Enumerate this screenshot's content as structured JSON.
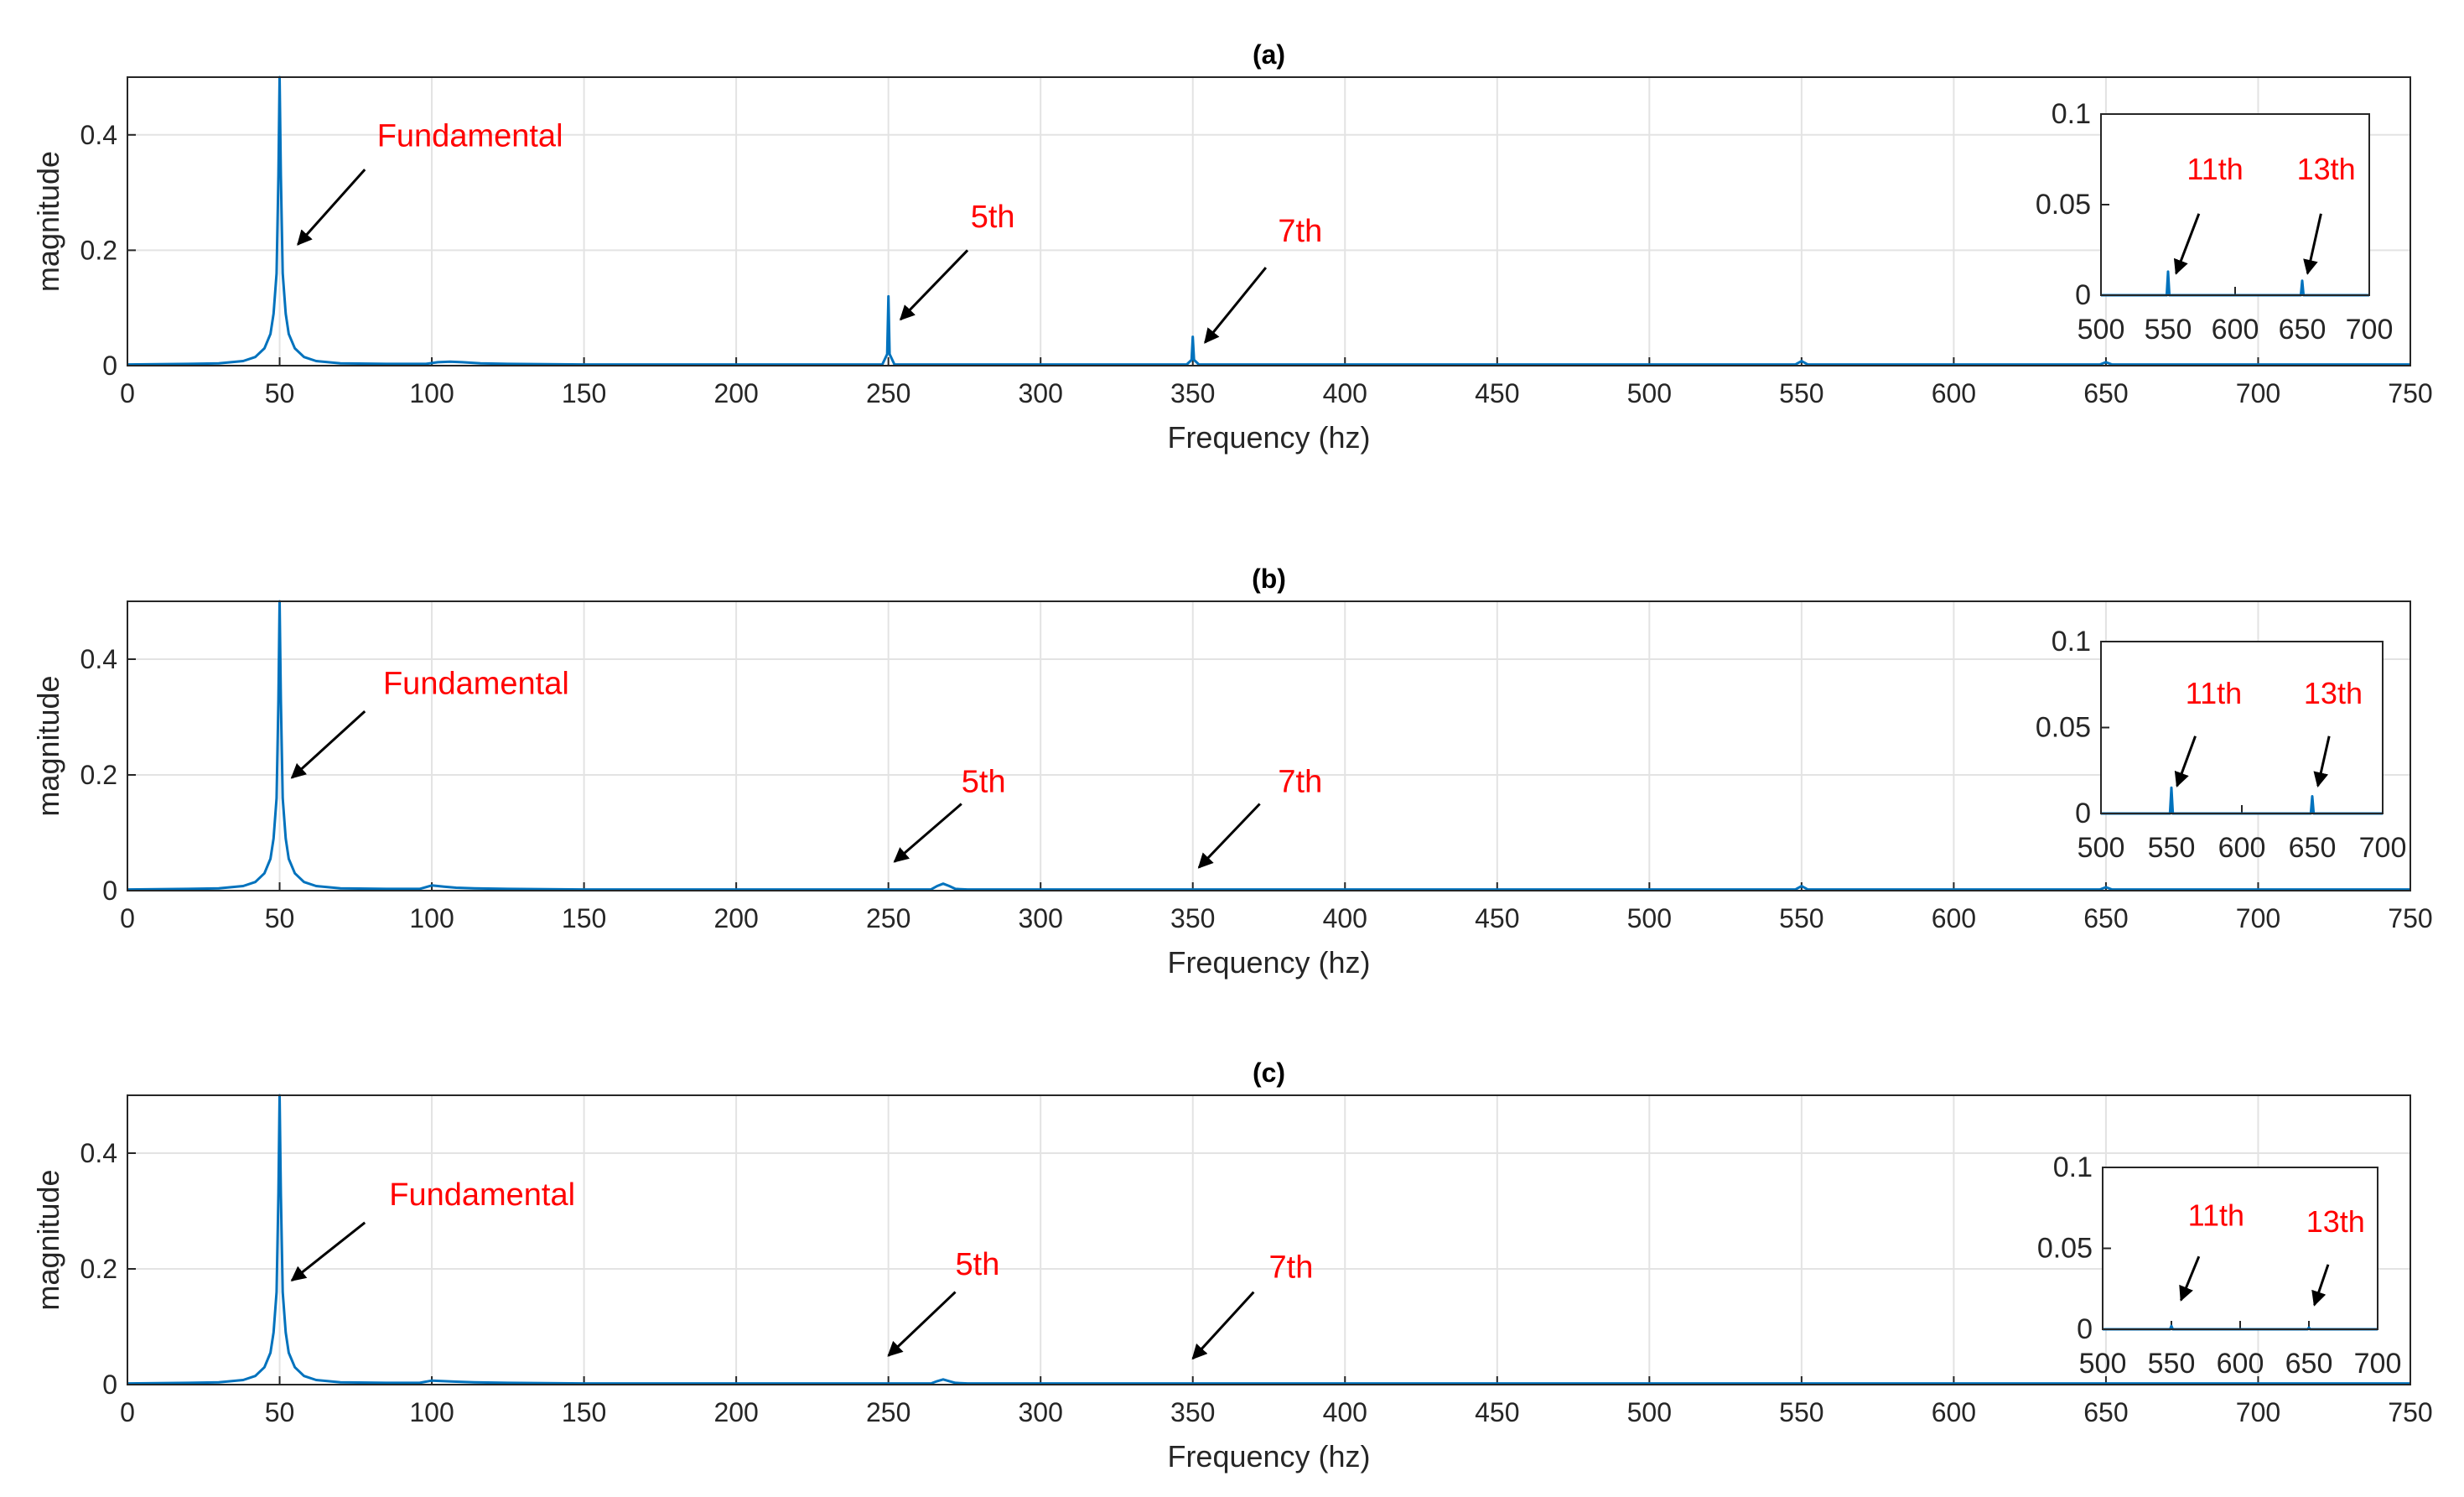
{
  "colors": {
    "series": "#0072BD",
    "grid": "#e3e3e3",
    "axis": "#262626",
    "annotation": "#ff0000",
    "arrow": "#000000"
  },
  "chart_data": [
    {
      "type": "line",
      "title": "(a)",
      "xlabel": "Frequency (hz)",
      "ylabel": "magnitude",
      "xlim": [
        0,
        750
      ],
      "ylim": [
        0,
        0.5
      ],
      "xticks": [
        0,
        50,
        100,
        150,
        200,
        250,
        300,
        350,
        400,
        450,
        500,
        550,
        600,
        650,
        700,
        750
      ],
      "yticks": [
        0,
        0.2,
        0.4
      ],
      "ytick_labels": [
        "0",
        "0.2",
        "0.4"
      ],
      "grid": true,
      "series": [
        {
          "x": [
            0,
            20,
            30,
            38,
            42,
            45,
            47,
            48,
            49,
            49.6,
            50,
            50.4,
            51,
            52,
            53,
            55,
            58,
            62,
            70,
            85,
            98,
            102,
            106,
            110,
            116,
            125,
            150,
            200,
            248,
            249.6,
            250,
            250.4,
            252,
            300,
            348,
            349.6,
            350,
            350.4,
            352,
            400,
            500,
            548,
            550,
            552,
            600,
            648,
            650,
            652,
            700,
            750
          ],
          "y": [
            0.002,
            0.003,
            0.004,
            0.008,
            0.015,
            0.03,
            0.055,
            0.09,
            0.16,
            0.33,
            0.5,
            0.33,
            0.16,
            0.09,
            0.055,
            0.03,
            0.015,
            0.008,
            0.004,
            0.003,
            0.003,
            0.006,
            0.007,
            0.006,
            0.004,
            0.003,
            0.002,
            0.002,
            0.002,
            0.02,
            0.12,
            0.02,
            0.002,
            0.002,
            0.002,
            0.01,
            0.05,
            0.01,
            0.002,
            0.002,
            0.002,
            0.002,
            0.008,
            0.002,
            0.002,
            0.002,
            0.006,
            0.002,
            0.002,
            0.002
          ]
        }
      ],
      "annotations": [
        {
          "text": "Fundamental",
          "x": 82,
          "y": 0.38,
          "arrow_tail": [
            78,
            0.34
          ],
          "arrow_head": [
            56,
            0.21
          ]
        },
        {
          "text": "5th",
          "x": 277,
          "y": 0.24,
          "arrow_tail": [
            276,
            0.2
          ],
          "arrow_head": [
            254,
            0.08
          ]
        },
        {
          "text": "7th",
          "x": 378,
          "y": 0.215,
          "arrow_tail": [
            374,
            0.17
          ],
          "arrow_head": [
            354,
            0.04
          ]
        }
      ],
      "inset": {
        "xlim": [
          500,
          700
        ],
        "ylim": [
          0,
          0.1
        ],
        "xticks": [
          500,
          550,
          600,
          650,
          700
        ],
        "yticks": [
          0,
          0.05,
          0.1
        ],
        "ytick_labels": [
          "0",
          "0.05",
          "0.1"
        ],
        "series": [
          {
            "x": [
              500,
              549,
              550,
              551,
              649,
              650,
              651,
              700
            ],
            "y": [
              0,
              0,
              0.013,
              0,
              0,
              0.008,
              0,
              0
            ]
          }
        ],
        "annotations": [
          {
            "text": "11th",
            "x": 564,
            "y": 0.064,
            "arrow_tail": [
              573,
              0.045
            ],
            "arrow_head": [
              556,
              0.012
            ]
          },
          {
            "text": "13th",
            "x": 646,
            "y": 0.064,
            "arrow_tail": [
              664,
              0.045
            ],
            "arrow_head": [
              654,
              0.012
            ]
          }
        ]
      }
    },
    {
      "type": "line",
      "title": "(b)",
      "xlabel": "Frequency (hz)",
      "ylabel": "magnitude",
      "xlim": [
        0,
        750
      ],
      "ylim": [
        0,
        0.5
      ],
      "xticks": [
        0,
        50,
        100,
        150,
        200,
        250,
        300,
        350,
        400,
        450,
        500,
        550,
        600,
        650,
        700,
        750
      ],
      "yticks": [
        0,
        0.2,
        0.4
      ],
      "ytick_labels": [
        "0",
        "0.2",
        "0.4"
      ],
      "grid": true,
      "series": [
        {
          "x": [
            0,
            20,
            30,
            38,
            42,
            45,
            47,
            48,
            49,
            49.6,
            50,
            50.4,
            51,
            52,
            53,
            55,
            58,
            62,
            70,
            85,
            96,
            100,
            104,
            108,
            114,
            125,
            150,
            200,
            250,
            264,
            266,
            268,
            270,
            272,
            276,
            300,
            350,
            400,
            500,
            548,
            550,
            552,
            600,
            648,
            650,
            652,
            700,
            750
          ],
          "y": [
            0.002,
            0.003,
            0.004,
            0.008,
            0.015,
            0.03,
            0.055,
            0.09,
            0.16,
            0.33,
            0.5,
            0.33,
            0.16,
            0.09,
            0.055,
            0.03,
            0.015,
            0.008,
            0.004,
            0.003,
            0.003,
            0.009,
            0.007,
            0.005,
            0.004,
            0.003,
            0.002,
            0.002,
            0.002,
            0.002,
            0.008,
            0.012,
            0.008,
            0.003,
            0.002,
            0.002,
            0.002,
            0.002,
            0.002,
            0.002,
            0.008,
            0.002,
            0.002,
            0.002,
            0.006,
            0.002,
            0.002,
            0.002
          ]
        }
      ],
      "annotations": [
        {
          "text": "Fundamental",
          "x": 84,
          "y": 0.34,
          "arrow_tail": [
            78,
            0.31
          ],
          "arrow_head": [
            54,
            0.195
          ]
        },
        {
          "text": "5th",
          "x": 274,
          "y": 0.17,
          "arrow_tail": [
            274,
            0.15
          ],
          "arrow_head": [
            252,
            0.05
          ]
        },
        {
          "text": "7th",
          "x": 378,
          "y": 0.17,
          "arrow_tail": [
            372,
            0.15
          ],
          "arrow_head": [
            352,
            0.04
          ]
        }
      ],
      "inset": {
        "xlim": [
          500,
          700
        ],
        "ylim": [
          0,
          0.1
        ],
        "xticks": [
          500,
          550,
          600,
          650,
          700
        ],
        "yticks": [
          0,
          0.05,
          0.1
        ],
        "ytick_labels": [
          "0",
          "0.05",
          "0.1"
        ],
        "series": [
          {
            "x": [
              500,
              549,
              550,
              551,
              649,
              650,
              651,
              700
            ],
            "y": [
              0,
              0,
              0.015,
              0,
              0,
              0.01,
              0,
              0
            ]
          }
        ],
        "annotations": [
          {
            "text": "11th",
            "x": 560,
            "y": 0.064,
            "arrow_tail": [
              567,
              0.045
            ],
            "arrow_head": [
              554,
              0.016
            ]
          },
          {
            "text": "13th",
            "x": 644,
            "y": 0.064,
            "arrow_tail": [
              662,
              0.045
            ],
            "arrow_head": [
              654,
              0.016
            ]
          }
        ]
      }
    },
    {
      "type": "line",
      "title": "(c)",
      "xlabel": "Frequency (hz)",
      "ylabel": "magnitude",
      "xlim": [
        0,
        750
      ],
      "ylim": [
        0,
        0.5
      ],
      "xticks": [
        0,
        50,
        100,
        150,
        200,
        250,
        300,
        350,
        400,
        450,
        500,
        550,
        600,
        650,
        700,
        750
      ],
      "yticks": [
        0,
        0.2,
        0.4
      ],
      "ytick_labels": [
        "0",
        "0.2",
        "0.4"
      ],
      "grid": true,
      "series": [
        {
          "x": [
            0,
            20,
            30,
            38,
            42,
            45,
            47,
            48,
            49,
            49.6,
            50,
            50.4,
            51,
            52,
            53,
            55,
            58,
            62,
            70,
            85,
            96,
            100,
            104,
            108,
            114,
            125,
            150,
            200,
            250,
            264,
            266,
            268,
            270,
            272,
            276,
            300,
            350,
            400,
            500,
            550,
            600,
            650,
            700,
            750
          ],
          "y": [
            0.002,
            0.003,
            0.004,
            0.008,
            0.015,
            0.03,
            0.055,
            0.09,
            0.16,
            0.33,
            0.5,
            0.33,
            0.16,
            0.09,
            0.055,
            0.03,
            0.015,
            0.008,
            0.004,
            0.003,
            0.003,
            0.007,
            0.006,
            0.005,
            0.004,
            0.003,
            0.002,
            0.002,
            0.002,
            0.002,
            0.006,
            0.009,
            0.006,
            0.003,
            0.002,
            0.002,
            0.002,
            0.002,
            0.002,
            0.002,
            0.002,
            0.002,
            0.002,
            0.002
          ]
        }
      ],
      "annotations": [
        {
          "text": "Fundamental",
          "x": 86,
          "y": 0.31,
          "arrow_tail": [
            78,
            0.28
          ],
          "arrow_head": [
            54,
            0.18
          ]
        },
        {
          "text": "5th",
          "x": 272,
          "y": 0.19,
          "arrow_tail": [
            272,
            0.16
          ],
          "arrow_head": [
            250,
            0.05
          ]
        },
        {
          "text": "7th",
          "x": 375,
          "y": 0.185,
          "arrow_tail": [
            370,
            0.16
          ],
          "arrow_head": [
            350,
            0.045
          ]
        }
      ],
      "inset": {
        "xlim": [
          500,
          700
        ],
        "ylim": [
          0,
          0.1
        ],
        "xticks": [
          500,
          550,
          600,
          650,
          700
        ],
        "yticks": [
          0,
          0.05,
          0.1
        ],
        "ytick_labels": [
          "0",
          "0.05",
          "0.1"
        ],
        "series": [
          {
            "x": [
              500,
              549,
              550,
              551,
              649,
              650,
              651,
              700
            ],
            "y": [
              0,
              0,
              0.002,
              0,
              0,
              0.001,
              0,
              0
            ]
          }
        ],
        "annotations": [
          {
            "text": "11th",
            "x": 562,
            "y": 0.064,
            "arrow_tail": [
              570,
              0.045
            ],
            "arrow_head": [
              557,
              0.018
            ]
          },
          {
            "text": "13th",
            "x": 648,
            "y": 0.06,
            "arrow_tail": [
              664,
              0.04
            ],
            "arrow_head": [
              654,
              0.015
            ]
          }
        ]
      }
    }
  ]
}
